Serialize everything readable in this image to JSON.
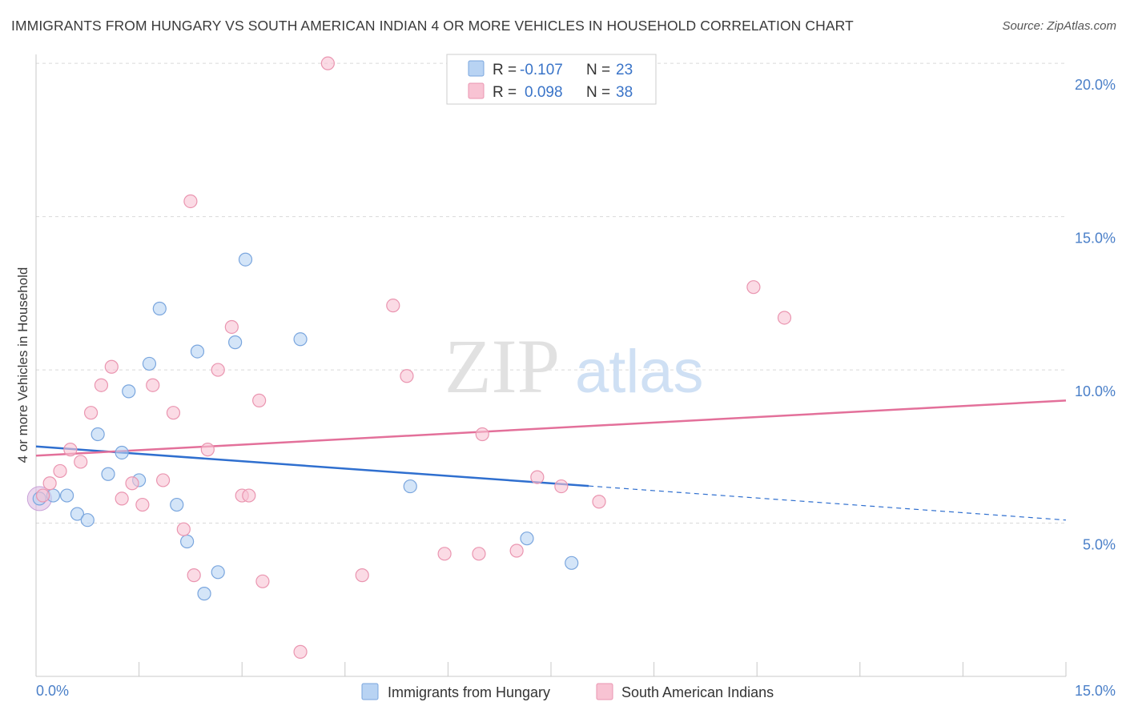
{
  "title": "IMMIGRANTS FROM HUNGARY VS SOUTH AMERICAN INDIAN 4 OR MORE VEHICLES IN HOUSEHOLD CORRELATION CHART",
  "source": "Source: ZipAtlas.com",
  "watermark": {
    "zip": "ZIP",
    "atlas": "atlas"
  },
  "colors": {
    "blue_fill": "#b8d3f3",
    "blue_stroke": "#7aa6de",
    "blue_line": "#2f6fcf",
    "pink_fill": "#f8c3d3",
    "pink_stroke": "#ea95b0",
    "pink_line": "#e3709a",
    "accent_text": "#3a74c8",
    "grid": "#d9d9d9"
  },
  "legend": {
    "rows": [
      {
        "r_label": "R =",
        "r_value": "-0.107",
        "n_label": "N =",
        "n_value": "23"
      },
      {
        "r_label": "R =",
        "r_value": "0.098",
        "n_label": "N =",
        "n_value": "38"
      }
    ]
  },
  "bottom_legend": [
    "Immigrants from Hungary",
    "South American Indians"
  ],
  "chart_data": {
    "type": "scatter",
    "ylabel": "4 or more Vehicles in Household",
    "xlim": [
      0,
      15
    ],
    "ylim": [
      0,
      20.5
    ],
    "y_ticks": [
      5,
      10,
      15,
      20
    ],
    "y_tick_labels": [
      "5.0%",
      "10.0%",
      "15.0%",
      "20.0%"
    ],
    "x_tick_labels": [
      "0.0%",
      "15.0%"
    ],
    "grid": true,
    "series": [
      {
        "name": "Immigrants from Hungary",
        "color": "blue",
        "points": [
          [
            0.05,
            5.8
          ],
          [
            0.25,
            5.9
          ],
          [
            0.45,
            5.9
          ],
          [
            0.6,
            5.3
          ],
          [
            0.75,
            5.1
          ],
          [
            0.9,
            7.9
          ],
          [
            1.05,
            6.6
          ],
          [
            1.25,
            7.3
          ],
          [
            1.35,
            9.3
          ],
          [
            1.5,
            6.4
          ],
          [
            1.65,
            10.2
          ],
          [
            1.8,
            12.0
          ],
          [
            2.05,
            5.6
          ],
          [
            2.2,
            4.4
          ],
          [
            2.35,
            10.6
          ],
          [
            2.45,
            2.7
          ],
          [
            2.65,
            3.4
          ],
          [
            2.9,
            10.9
          ],
          [
            3.05,
            13.6
          ],
          [
            3.85,
            11.0
          ],
          [
            5.45,
            6.2
          ],
          [
            7.15,
            4.5
          ],
          [
            7.8,
            3.7
          ]
        ],
        "trend": {
          "x0": 0.0,
          "y0": 7.5,
          "x_solid_end": 8.05,
          "x1": 15.0,
          "y1": 5.1
        }
      },
      {
        "name": "South American Indians",
        "color": "pink",
        "points": [
          [
            0.2,
            6.3
          ],
          [
            0.35,
            6.7
          ],
          [
            0.5,
            7.4
          ],
          [
            0.65,
            7.0
          ],
          [
            0.8,
            8.6
          ],
          [
            0.95,
            9.5
          ],
          [
            1.1,
            10.1
          ],
          [
            1.25,
            5.8
          ],
          [
            1.4,
            6.3
          ],
          [
            1.55,
            5.6
          ],
          [
            1.7,
            9.5
          ],
          [
            1.85,
            6.4
          ],
          [
            2.0,
            8.6
          ],
          [
            2.15,
            4.8
          ],
          [
            2.3,
            3.3
          ],
          [
            2.25,
            15.5
          ],
          [
            2.5,
            7.4
          ],
          [
            2.65,
            10.0
          ],
          [
            2.85,
            11.4
          ],
          [
            3.0,
            5.9
          ],
          [
            3.1,
            5.9
          ],
          [
            3.25,
            9.0
          ],
          [
            3.3,
            3.1
          ],
          [
            3.85,
            0.8
          ],
          [
            4.25,
            20.0
          ],
          [
            4.75,
            3.3
          ],
          [
            5.2,
            12.1
          ],
          [
            5.4,
            9.8
          ],
          [
            5.95,
            4.0
          ],
          [
            6.5,
            7.9
          ],
          [
            6.45,
            4.0
          ],
          [
            7.0,
            4.1
          ],
          [
            7.3,
            6.5
          ],
          [
            7.65,
            6.2
          ],
          [
            8.2,
            5.7
          ],
          [
            10.45,
            12.7
          ],
          [
            10.9,
            11.7
          ],
          [
            0.1,
            5.9
          ]
        ],
        "trend": {
          "x0": 0.0,
          "y0": 7.2,
          "x1": 15.0,
          "y1": 9.0
        }
      }
    ]
  }
}
